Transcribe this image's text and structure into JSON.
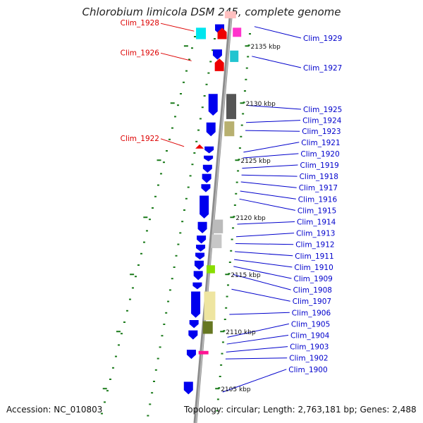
{
  "title": "Chlorobium limicola DSM 245, complete genome",
  "accession": "Accession: NC_010803",
  "topology": "Topology: circular; Length: 2,763,181 bp; Genes: 2,488",
  "colors": {
    "backbone": "#8c8c8c",
    "minus_strand_label": "#dd0000",
    "plus_strand_label": "#0000cc",
    "tick": "#1a7a1a",
    "cds_plus": "#0000ee",
    "cds_minus": "#ee0000"
  },
  "kbp_marks": [
    {
      "label": "2135 kbp",
      "kbp": 2135
    },
    {
      "label": "2130 kbp",
      "kbp": 2130
    },
    {
      "label": "2125 kbp",
      "kbp": 2125
    },
    {
      "label": "2120 kbp",
      "kbp": 2120
    },
    {
      "label": "2115 kbp",
      "kbp": 2115
    },
    {
      "label": "2110 kbp",
      "kbp": 2110
    },
    {
      "label": "2105 kbp",
      "kbp": 2105
    }
  ],
  "minus_genes": [
    {
      "label": "Clim_1928",
      "kbp": 2136.3
    },
    {
      "label": "Clim_1926",
      "kbp": 2133.7
    },
    {
      "label": "Clim_1922",
      "kbp": 2126.2
    }
  ],
  "plus_genes": [
    {
      "label": "Clim_1929",
      "kbp": 2136.7
    },
    {
      "label": "Clim_1927",
      "kbp": 2134.1
    },
    {
      "label": "Clim_1925",
      "kbp": 2129.8
    },
    {
      "label": "Clim_1924",
      "kbp": 2128.3
    },
    {
      "label": "Clim_1923",
      "kbp": 2127.6
    },
    {
      "label": "Clim_1921",
      "kbp": 2125.7
    },
    {
      "label": "Clim_1920",
      "kbp": 2125.2
    },
    {
      "label": "Clim_1919",
      "kbp": 2124.3
    },
    {
      "label": "Clim_1918",
      "kbp": 2123.7
    },
    {
      "label": "Clim_1917",
      "kbp": 2123.1
    },
    {
      "label": "Clim_1916",
      "kbp": 2122.3
    },
    {
      "label": "Clim_1915",
      "kbp": 2121.6
    },
    {
      "label": "Clim_1914",
      "kbp": 2119.4
    },
    {
      "label": "Clim_1913",
      "kbp": 2118.3
    },
    {
      "label": "Clim_1912",
      "kbp": 2117.7
    },
    {
      "label": "Clim_1911",
      "kbp": 2117.0
    },
    {
      "label": "Clim_1910",
      "kbp": 2116.3
    },
    {
      "label": "Clim_1909",
      "kbp": 2115.7
    },
    {
      "label": "Clim_1908",
      "kbp": 2115.0
    },
    {
      "label": "Clim_1907",
      "kbp": 2113.7
    },
    {
      "label": "Clim_1906",
      "kbp": 2111.5
    },
    {
      "label": "Clim_1905",
      "kbp": 2109.5
    },
    {
      "label": "Clim_1904",
      "kbp": 2108.9
    },
    {
      "label": "Clim_1903",
      "kbp": 2108.2
    },
    {
      "label": "Clim_1902",
      "kbp": 2107.6
    },
    {
      "label": "Clim_1900",
      "kbp": 2104.7
    }
  ]
}
